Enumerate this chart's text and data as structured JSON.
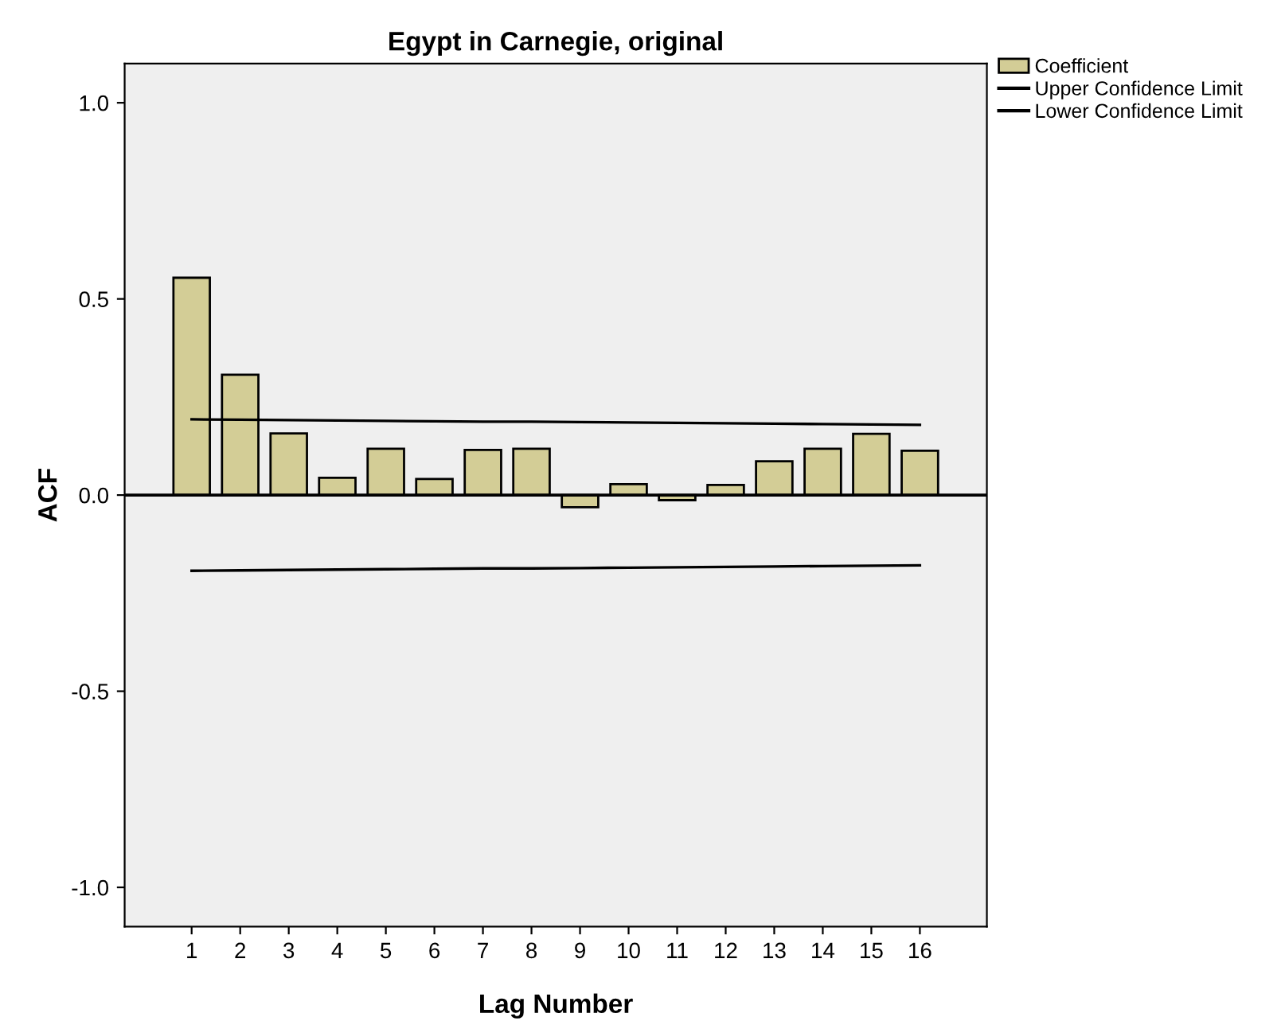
{
  "chart_data": {
    "type": "bar",
    "title": "Egypt in Carnegie, original",
    "xlabel": "Lag Number",
    "ylabel": "ACF",
    "categories": [
      "1",
      "2",
      "3",
      "4",
      "5",
      "6",
      "7",
      "8",
      "9",
      "10",
      "11",
      "12",
      "13",
      "14",
      "15",
      "16"
    ],
    "series": [
      {
        "name": "Coefficient",
        "color": "#d3cd96",
        "values": [
          0.554,
          0.307,
          0.157,
          0.044,
          0.118,
          0.041,
          0.115,
          0.118,
          -0.031,
          0.028,
          -0.013,
          0.026,
          0.086,
          0.118,
          0.156,
          0.113
        ]
      },
      {
        "name": "Upper Confidence Limit",
        "type": "line",
        "color": "#000000",
        "values": [
          0.193,
          0.192,
          0.191,
          0.19,
          0.189,
          0.188,
          0.187,
          0.187,
          0.186,
          0.185,
          0.184,
          0.183,
          0.182,
          0.181,
          0.18,
          0.179
        ]
      },
      {
        "name": "Lower Confidence Limit",
        "type": "line",
        "color": "#000000",
        "values": [
          -0.193,
          -0.192,
          -0.191,
          -0.19,
          -0.189,
          -0.188,
          -0.187,
          -0.187,
          -0.186,
          -0.185,
          -0.184,
          -0.183,
          -0.182,
          -0.181,
          -0.18,
          -0.179
        ]
      }
    ],
    "ylim": [
      -1.1,
      1.1
    ],
    "yticks": [
      {
        "value": -1.0,
        "label": "-1.0"
      },
      {
        "value": -0.5,
        "label": "-0.5"
      },
      {
        "value": 0.0,
        "label": "0.0"
      },
      {
        "value": 0.5,
        "label": "0.5"
      },
      {
        "value": 1.0,
        "label": "1.0"
      }
    ],
    "ref_lines": [
      {
        "axis": "y",
        "value": 0,
        "color": "#000000"
      }
    ],
    "grid": false,
    "legend": "top right",
    "marker": "none",
    "line_style": "solid"
  }
}
